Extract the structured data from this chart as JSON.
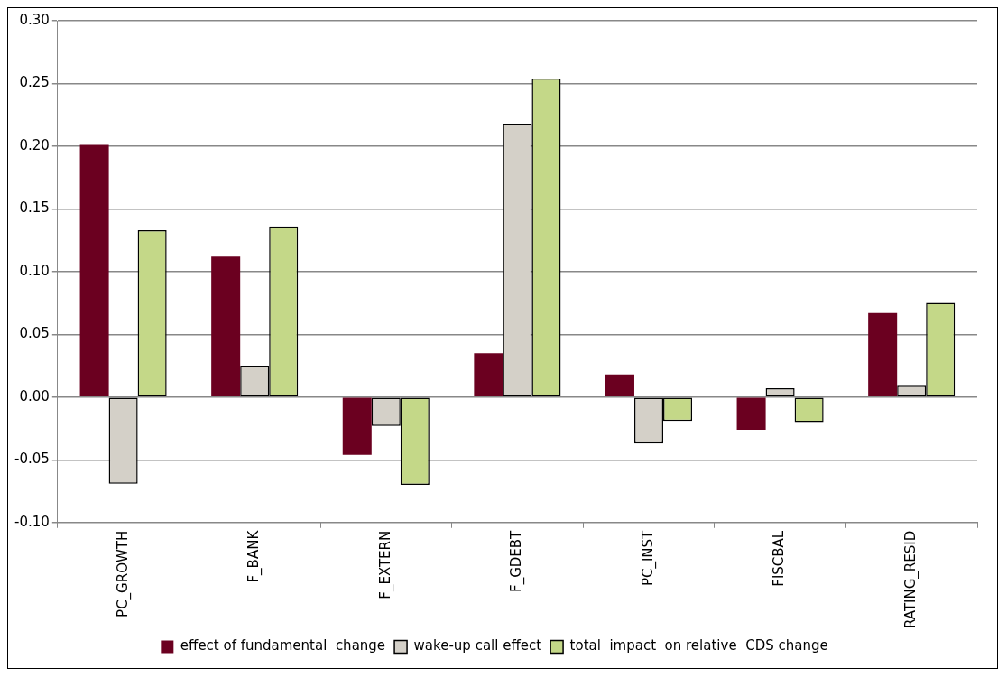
{
  "chart_data": {
    "type": "bar",
    "categories": [
      "PC_GROWTH",
      "F_BANK",
      "F_EXTERN",
      "F_GDEBT",
      "PC_INST",
      "FISCBAL",
      "RATING_RESID"
    ],
    "series": [
      {
        "name": "effect of fundamental  change",
        "color": "#6b0020",
        "values": [
          0.201,
          0.112,
          -0.046,
          0.035,
          0.018,
          -0.026,
          0.067
        ]
      },
      {
        "name": "wake-up call effect",
        "color": "#d4d0c8",
        "values": [
          -0.069,
          0.025,
          -0.023,
          0.218,
          -0.037,
          0.007,
          0.009
        ]
      },
      {
        "name": "total  impact  on relative  CDS change",
        "color": "#c4d888",
        "values": [
          0.133,
          0.136,
          -0.07,
          0.254,
          -0.019,
          -0.02,
          0.075
        ]
      }
    ],
    "ylim": [
      -0.1,
      0.3
    ],
    "yticks": [
      {
        "value": -0.1,
        "label": "-0.10"
      },
      {
        "value": -0.05,
        "label": "-0.05"
      },
      {
        "value": 0,
        "label": "0.00"
      },
      {
        "value": 0.05,
        "label": "0.05"
      },
      {
        "value": 0.1,
        "label": "0.10"
      },
      {
        "value": 0.15,
        "label": "0.15"
      },
      {
        "value": 0.2,
        "label": "0.20"
      },
      {
        "value": 0.25,
        "label": "0.25"
      },
      {
        "value": 0.3,
        "label": "0.30"
      }
    ],
    "grid": "y",
    "legend": "bottom"
  }
}
